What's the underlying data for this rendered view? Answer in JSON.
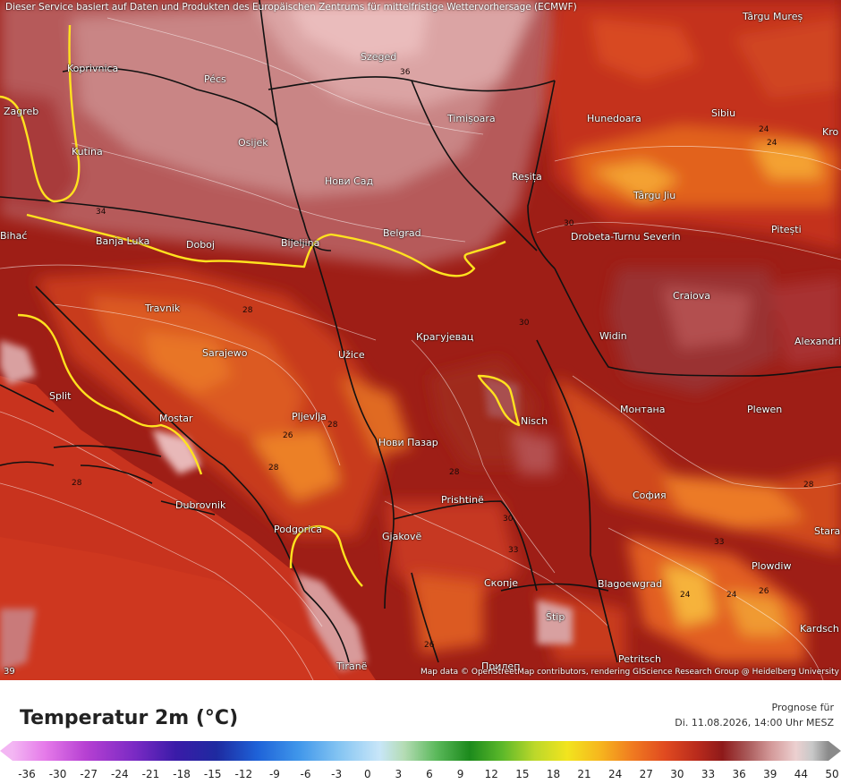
{
  "attribution_top": "Dieser Service basiert auf Daten und Produkten des Europäischen Zentrums für mittelfristige Wettervorhersage (ECMWF)",
  "attribution_bottom": "Map data © OpenStreetMap contributors, rendering GIScience Research Group @ Heidelberg University",
  "title": "Temperatur 2m (°C)",
  "prognose_label": "Prognose für",
  "prognose_date": "Di. 11.08.2026, 14:00 Uhr MESZ",
  "scale_ticks": [
    "-36",
    "-30",
    "-27",
    "-24",
    "-21",
    "-18",
    "-15",
    "-12",
    "-9",
    "-6",
    "-3",
    "0",
    "3",
    "6",
    "9",
    "12",
    "15",
    "18",
    "21",
    "24",
    "27",
    "30",
    "33",
    "36",
    "39",
    "44",
    "50"
  ],
  "corner_number": "39",
  "cities": [
    {
      "name": "Koprivnica"
    },
    {
      "name": "Pécs"
    },
    {
      "name": "Szeged"
    },
    {
      "name": "Târgu Mureș"
    },
    {
      "name": "Zagreb"
    },
    {
      "name": "Osijek"
    },
    {
      "name": "Timișoara"
    },
    {
      "name": "Hunedoara"
    },
    {
      "name": "Sibiu"
    },
    {
      "name": "Kro"
    },
    {
      "name": "Kutina"
    },
    {
      "name": "Нови Сад"
    },
    {
      "name": "Reșița"
    },
    {
      "name": "Târgu Jiu"
    },
    {
      "name": "Bihać"
    },
    {
      "name": "Banja Luka"
    },
    {
      "name": "Doboj"
    },
    {
      "name": "Bijeljina"
    },
    {
      "name": "Belgrad"
    },
    {
      "name": "Drobeta-Turnu Severin"
    },
    {
      "name": "Pitești"
    },
    {
      "name": "Travnik"
    },
    {
      "name": "Craiova"
    },
    {
      "name": "Widin"
    },
    {
      "name": "Alexandria"
    },
    {
      "name": "Sarajewo"
    },
    {
      "name": "Užice"
    },
    {
      "name": "Крагујевац"
    },
    {
      "name": "Split"
    },
    {
      "name": "Mostar"
    },
    {
      "name": "Pljevlja"
    },
    {
      "name": "Nisch"
    },
    {
      "name": "Монтана"
    },
    {
      "name": "Plewen"
    },
    {
      "name": "Нови Пазар"
    },
    {
      "name": "Dubrovnik"
    },
    {
      "name": "Prishtinë"
    },
    {
      "name": "София"
    },
    {
      "name": "Stara"
    },
    {
      "name": "Podgorica"
    },
    {
      "name": "Gjakovë"
    },
    {
      "name": "Скопје"
    },
    {
      "name": "Blagoewgrad"
    },
    {
      "name": "Plowdiw"
    },
    {
      "name": "Štip"
    },
    {
      "name": "Kardsch"
    },
    {
      "name": "Tiranë"
    },
    {
      "name": "Прилеп"
    },
    {
      "name": "Petritsch"
    }
  ],
  "contour_values": [
    "36",
    "34",
    "28",
    "28",
    "30",
    "28",
    "26",
    "30",
    "28",
    "33",
    "24",
    "24",
    "24",
    "26",
    "30",
    "33",
    "26",
    "28",
    "28",
    "24"
  ],
  "colors": {
    "land_hot": "#b52a1a",
    "land_warm": "#d84a22",
    "land_peak": "#f08a2a",
    "plains": "#c98a8a",
    "plains_light": "#e3b6b6",
    "sea": "#c8331e",
    "border": "#111111",
    "yellow_line": "#ffe21f"
  }
}
